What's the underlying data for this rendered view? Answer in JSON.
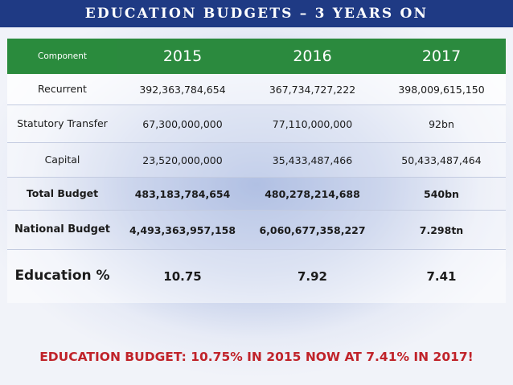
{
  "title": "EDUCATION BUDGETS – 3 YEARS ON",
  "table": {
    "headers": [
      "Component",
      "2015",
      "2016",
      "2017"
    ],
    "rows": [
      [
        "Recurrent",
        "392,363,784,654",
        "367,734,727,222",
        "398,009,615,150"
      ],
      [
        "Statutory Transfer",
        "67,300,000,000",
        "77,110,000,000",
        "92bn"
      ],
      [
        "Capital",
        "23,520,000,000",
        "35,433,487,466",
        "50,433,487,464"
      ],
      [
        "Total Budget",
        "483,183,784,654",
        "480,278,214,688",
        "540bn"
      ],
      [
        "National Budget",
        "4,493,363,957,158",
        "6,060,677,358,227",
        "7.298tn"
      ],
      [
        "Education %",
        "10.75",
        "7.92",
        "7.41"
      ]
    ]
  },
  "footer": "EDUCATION BUDGET: 10.75% IN 2015 NOW AT 7.41% IN 2017!",
  "colors": {
    "title_bar": "#1f3a84",
    "header_row": "#2b8a3e",
    "footer_text": "#c0232a"
  }
}
